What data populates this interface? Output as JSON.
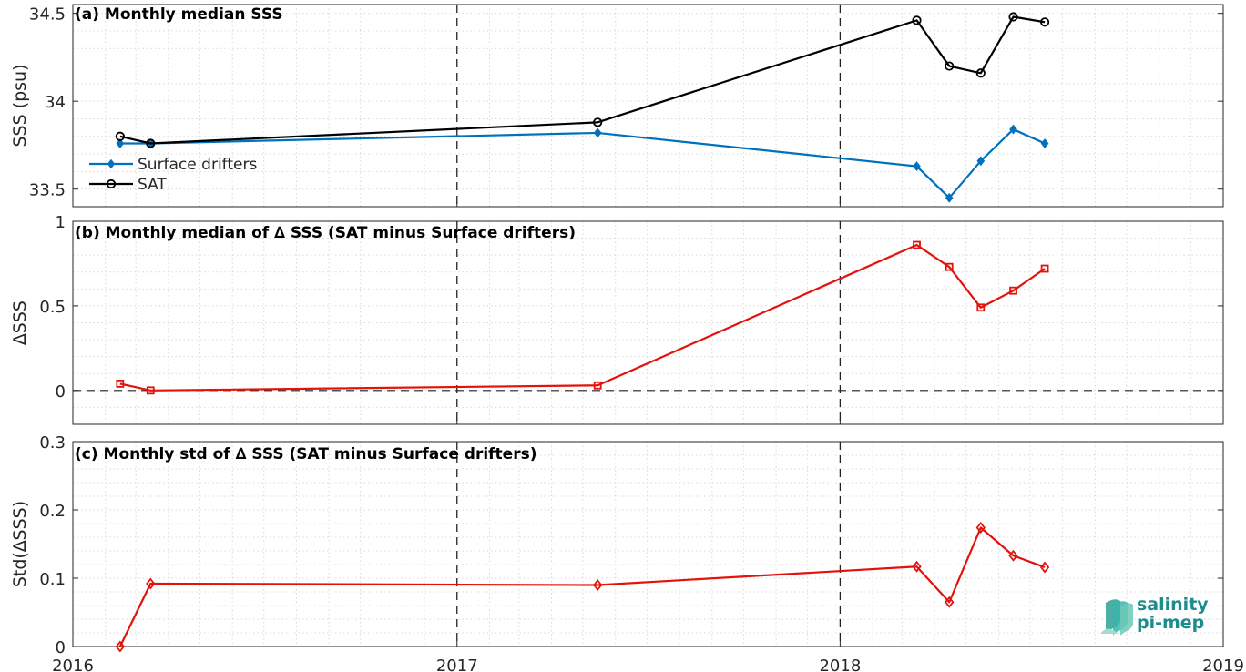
{
  "chart_data": [
    {
      "type": "line",
      "title": "(a) Monthly median SSS",
      "xlabel": "",
      "ylabel": "SSS (psu)",
      "xlim": [
        "2016-01-01",
        "2019-01-01"
      ],
      "ylim": [
        33.4,
        34.55
      ],
      "yticks": [
        33.5,
        34,
        34.5
      ],
      "ytick_labels": [
        "33.5",
        "34",
        "34.5"
      ],
      "grid": true,
      "legend_position": "bottom-left",
      "series": [
        {
          "name": "Surface drifters",
          "color": "#0072bd",
          "marker": "diamond",
          "x": [
            "2016-02-15",
            "2016-03-15",
            "2017-05-15",
            "2018-03-15",
            "2018-04-15",
            "2018-05-15",
            "2018-06-15",
            "2018-07-15"
          ],
          "y": [
            33.76,
            33.76,
            33.82,
            33.63,
            33.45,
            33.66,
            33.84,
            33.76
          ]
        },
        {
          "name": "SAT",
          "color": "#000000",
          "marker": "circle",
          "x": [
            "2016-02-15",
            "2016-03-15",
            "2017-05-15",
            "2018-03-15",
            "2018-04-15",
            "2018-05-15",
            "2018-06-15",
            "2018-07-15"
          ],
          "y": [
            33.8,
            33.76,
            33.88,
            34.46,
            34.2,
            34.16,
            34.48,
            34.45
          ]
        }
      ]
    },
    {
      "type": "line",
      "title": "(b) Monthly median of ∆ SSS (SAT minus Surface drifters)",
      "xlabel": "",
      "ylabel": "∆SSS",
      "xlim": [
        "2016-01-01",
        "2019-01-01"
      ],
      "ylim": [
        -0.2,
        1
      ],
      "yticks": [
        0,
        0.5,
        1
      ],
      "ytick_labels": [
        "0",
        "0.5",
        "1"
      ],
      "grid": true,
      "zero_line": true,
      "series": [
        {
          "name": "",
          "color": "#e3120b",
          "marker": "square",
          "x": [
            "2016-02-15",
            "2016-03-15",
            "2017-05-15",
            "2018-03-15",
            "2018-04-15",
            "2018-05-15",
            "2018-06-15",
            "2018-07-15"
          ],
          "y": [
            0.04,
            0.0,
            0.03,
            0.86,
            0.73,
            0.49,
            0.59,
            0.72
          ]
        }
      ]
    },
    {
      "type": "line",
      "title": "(c) Monthly std of ∆ SSS (SAT minus Surface drifters)",
      "xlabel": "",
      "ylabel": "Std(∆SSS)",
      "xlim": [
        "2016-01-01",
        "2019-01-01"
      ],
      "ylim": [
        0,
        0.3
      ],
      "yticks": [
        0,
        0.1,
        0.2,
        0.3
      ],
      "ytick_labels": [
        "0",
        "0.1",
        "0.2",
        "0.3"
      ],
      "xticks": [
        "2016-01-01",
        "2017-01-01",
        "2018-01-01",
        "2019-01-01"
      ],
      "xtick_labels": [
        "2016",
        "2017",
        "2018",
        "2019"
      ],
      "grid": true,
      "series": [
        {
          "name": "",
          "color": "#e3120b",
          "marker": "diamond",
          "x": [
            "2016-02-15",
            "2016-03-15",
            "2017-05-15",
            "2018-03-15",
            "2018-04-15",
            "2018-05-15",
            "2018-06-15",
            "2018-07-15"
          ],
          "y": [
            0.0,
            0.092,
            0.09,
            0.117,
            0.065,
            0.174,
            0.133,
            0.116
          ]
        }
      ]
    }
  ],
  "logo": {
    "line1": "salinity",
    "line2": "pi-mep"
  }
}
